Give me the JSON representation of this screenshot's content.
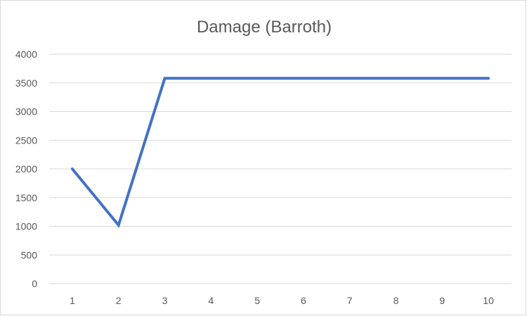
{
  "chart_data": {
    "type": "line",
    "title": "Damage (Barroth)",
    "xlabel": "",
    "ylabel": "",
    "categories": [
      "1",
      "2",
      "3",
      "4",
      "5",
      "6",
      "7",
      "8",
      "9",
      "10"
    ],
    "series": [
      {
        "values": [
          2000,
          1020,
          3580,
          3580,
          3580,
          3580,
          3580,
          3580,
          3580,
          3580
        ]
      }
    ],
    "ylim": [
      0,
      4000
    ],
    "yticks": [
      0,
      500,
      1000,
      1500,
      2000,
      2500,
      3000,
      3500,
      4000
    ],
    "grid": true,
    "legend": "none",
    "series_color": "#4472c4"
  }
}
